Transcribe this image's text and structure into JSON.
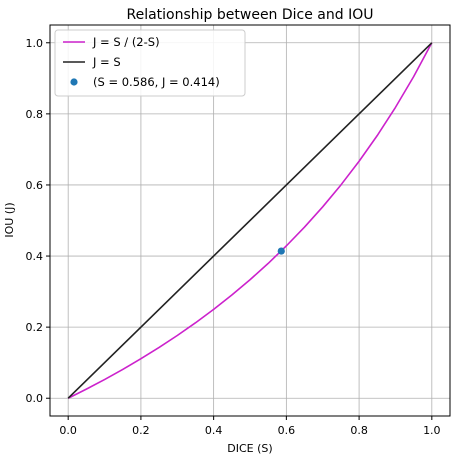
{
  "chart_data": {
    "type": "line",
    "title": "Relationship between Dice and IOU",
    "xlabel": "DICE (S)",
    "ylabel": "IOU (J)",
    "xlim": [
      -0.05,
      1.05
    ],
    "ylim": [
      -0.05,
      1.05
    ],
    "grid": true,
    "xticks": [
      0.0,
      0.2,
      0.4,
      0.6,
      0.8,
      1.0
    ],
    "yticks": [
      0.0,
      0.2,
      0.4,
      0.6,
      0.8,
      1.0
    ],
    "xtick_labels": [
      "0.0",
      "0.2",
      "0.4",
      "0.6",
      "0.8",
      "1.0"
    ],
    "ytick_labels": [
      "0.0",
      "0.2",
      "0.4",
      "0.6",
      "0.8",
      "1.0"
    ],
    "legend_position": "top-left",
    "series": [
      {
        "name": "J = S / (2-S)",
        "type": "line",
        "color": "#cc22cc",
        "x": [
          0.0,
          0.05,
          0.1,
          0.15,
          0.2,
          0.25,
          0.3,
          0.35,
          0.4,
          0.45,
          0.5,
          0.55,
          0.6,
          0.65,
          0.7,
          0.75,
          0.8,
          0.85,
          0.9,
          0.95,
          1.0
        ],
        "y": [
          0.0,
          0.0256,
          0.0526,
          0.0811,
          0.1111,
          0.1429,
          0.1765,
          0.2121,
          0.25,
          0.2903,
          0.3333,
          0.3793,
          0.4286,
          0.4815,
          0.5385,
          0.6,
          0.6667,
          0.7391,
          0.8182,
          0.9048,
          1.0
        ]
      },
      {
        "name": "J = S",
        "type": "line",
        "color": "#222222",
        "x": [
          0.0,
          1.0
        ],
        "y": [
          0.0,
          1.0
        ]
      },
      {
        "name": "(S = 0.586, J = 0.414)",
        "type": "scatter",
        "color": "#1f77b4",
        "x": [
          0.586
        ],
        "y": [
          0.414
        ]
      }
    ]
  }
}
